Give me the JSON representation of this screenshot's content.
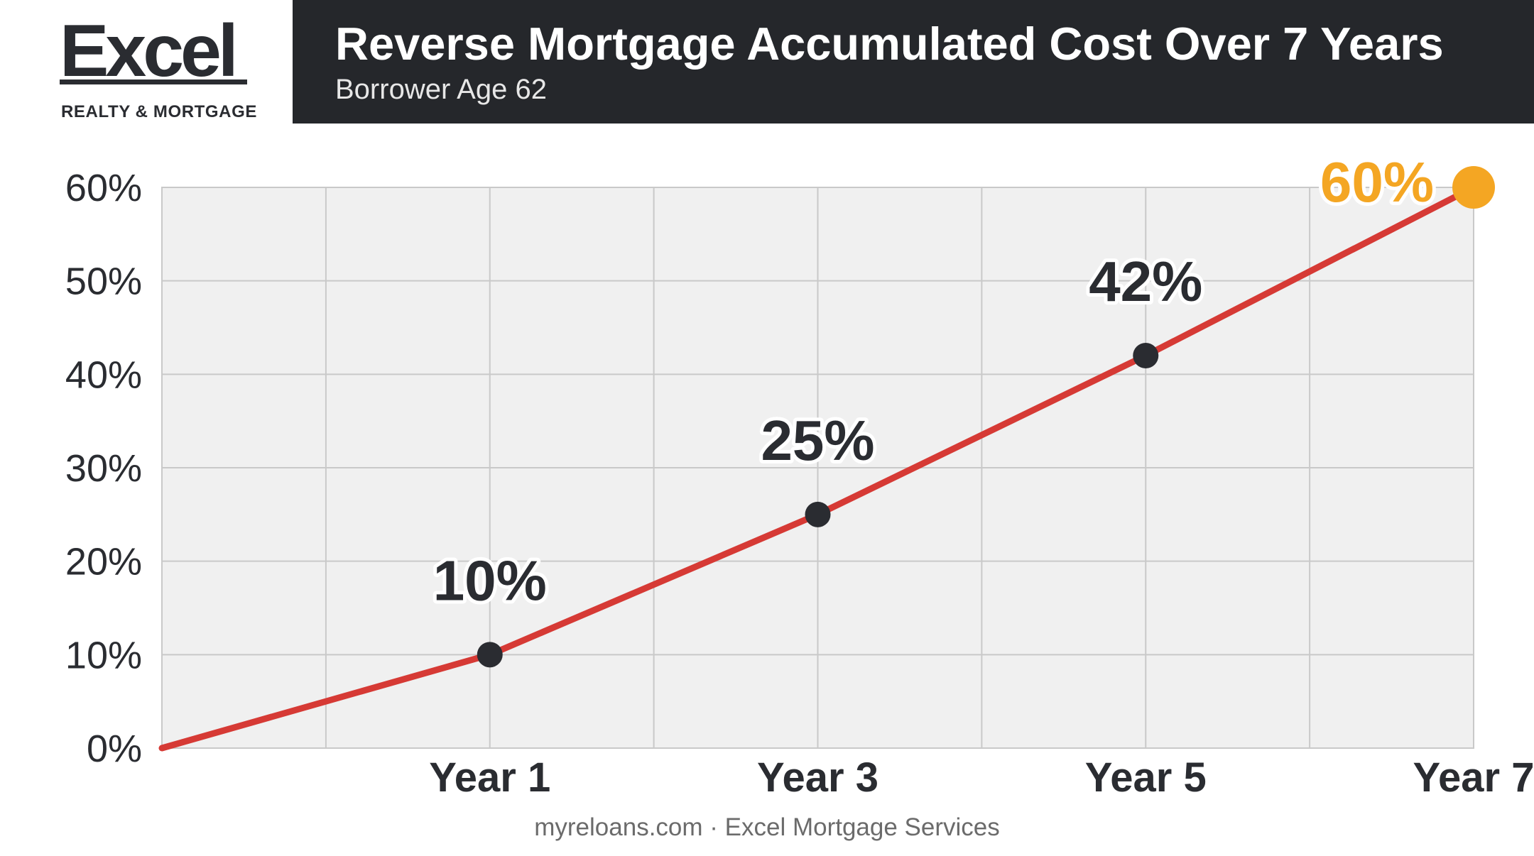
{
  "brand": {
    "name": "Excel",
    "tagline": "REALTY & MORTGAGE"
  },
  "header": {
    "title": "Reverse Mortgage Accumulated Cost Over 7 Years",
    "subtitle": "Borrower Age 62"
  },
  "footer": {
    "text": "myreloans.com · Excel Mortgage Services"
  },
  "colors": {
    "header_bg": "#25272b",
    "line": "#d63a35",
    "point": "#2a2c31",
    "highlight": "#f4a623",
    "plot_bg": "#f0f0f0",
    "grid": "#c9c9c9"
  },
  "chart_data": {
    "type": "line",
    "title": "Reverse Mortgage Accumulated Cost Over 7 Years",
    "subtitle": "Borrower Age 62",
    "xlabel": "",
    "ylabel": "",
    "x_tick_labels": [
      "Year 1",
      "Year 3",
      "Year 5",
      "Year 7"
    ],
    "y_tick_labels": [
      "0%",
      "10%",
      "20%",
      "30%",
      "40%",
      "50%",
      "60%"
    ],
    "ylim": [
      0,
      60
    ],
    "xlim": [
      0,
      8
    ],
    "grid": true,
    "series": [
      {
        "x": [
          0,
          2,
          4,
          6,
          8
        ],
        "y": [
          0,
          10,
          25,
          42,
          60
        ],
        "labels": [
          "",
          "10%",
          "25%",
          "42%",
          "60%"
        ],
        "highlight_last": true
      }
    ]
  }
}
